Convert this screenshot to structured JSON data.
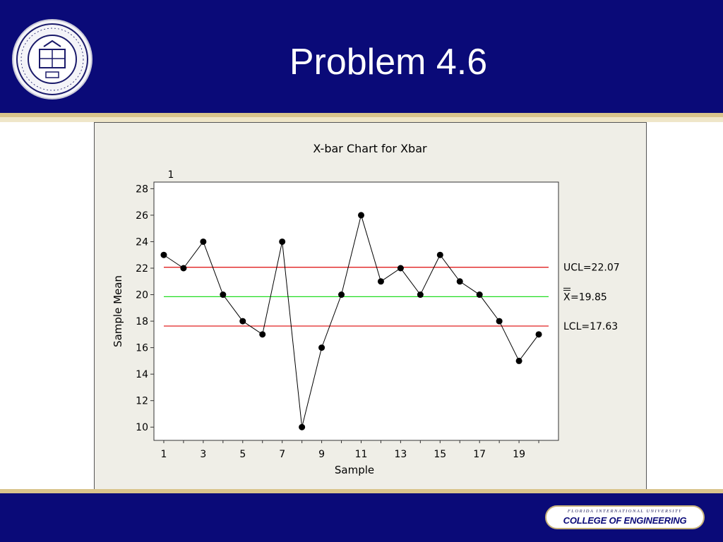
{
  "slide": {
    "title": "Problem 4.6",
    "footer_university": "FLORIDA INTERNATIONAL UNIVERSITY",
    "footer_college": "COLLEGE OF ENGINEERING"
  },
  "colors": {
    "header_bg": "#0a0a78",
    "gold": "#d9c48c",
    "control_limit": "#e02020",
    "center_line": "#22dd22",
    "series": "#000000"
  },
  "chart_data": {
    "type": "line",
    "title": "X-bar Chart for Xbar",
    "xlabel": "Sample",
    "ylabel": "Sample Mean",
    "x": [
      1,
      2,
      3,
      4,
      5,
      6,
      7,
      8,
      9,
      10,
      11,
      12,
      13,
      14,
      15,
      16,
      17,
      18,
      19,
      20
    ],
    "series": [
      {
        "values": [
          23,
          22,
          24,
          20,
          18,
          17,
          24,
          10,
          16,
          20,
          26,
          21,
          22,
          20,
          23,
          21,
          20,
          18,
          15,
          17
        ]
      }
    ],
    "xlim": [
      0.5,
      21.0
    ],
    "ylim": [
      9.0,
      28.5
    ],
    "x_ticks": [
      1,
      3,
      5,
      7,
      9,
      11,
      13,
      15,
      17,
      19
    ],
    "y_ticks": [
      10,
      12,
      14,
      16,
      18,
      20,
      22,
      24,
      26,
      28
    ],
    "lines": {
      "ucl": {
        "value": 22.07,
        "label": "UCL=22.07"
      },
      "center": {
        "value": 19.85,
        "label": "=19.85",
        "symbol": "X"
      },
      "lcl": {
        "value": 17.63,
        "label": "LCL=17.63"
      }
    },
    "annotations": [
      {
        "x": 1,
        "text": "1"
      }
    ],
    "grid": false,
    "legend": "none"
  }
}
